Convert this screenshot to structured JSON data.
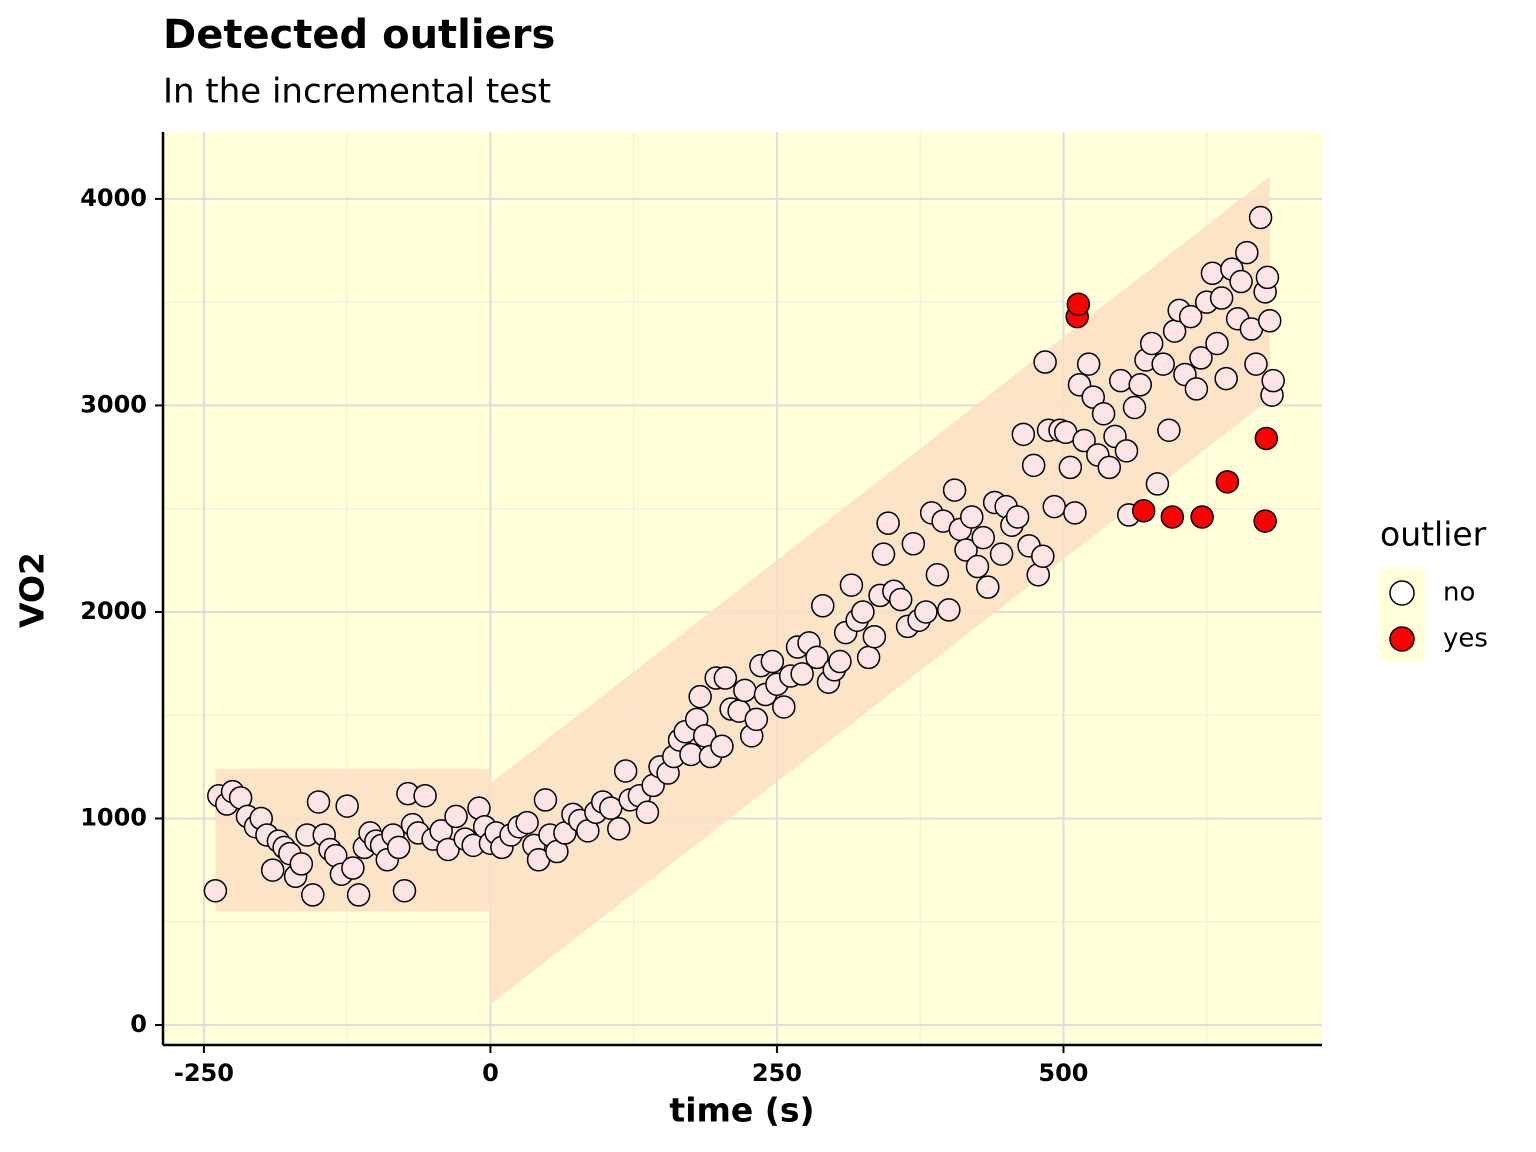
{
  "chart_data": {
    "type": "scatter",
    "title": "Detected outliers",
    "subtitle": "In the incremental test",
    "x_label": "time (s)",
    "y_label": "VO2",
    "xlim": [
      -285.7,
      725.6
    ],
    "ylim": [
      -96.9,
      4324
    ],
    "xticks": [
      -250,
      0,
      250,
      500
    ],
    "yticks": [
      0,
      1000,
      2000,
      3000,
      4000
    ],
    "minor_xticks": [
      -125,
      125,
      375,
      625
    ],
    "minor_yticks": [
      500,
      1500,
      2500,
      3500
    ],
    "grid": true,
    "background": "#ffffd8",
    "band_color": "#fddfc4",
    "band": [
      {
        "x": [
          -240,
          0
        ],
        "lower": [
          550,
          550
        ],
        "upper": [
          1240,
          1240
        ]
      },
      {
        "x": [
          0,
          680
        ],
        "lower": [
          100,
          3030
        ],
        "upper": [
          1170,
          4110
        ]
      }
    ],
    "legend_title": "outlier",
    "legend_position": "right",
    "series": [
      {
        "name": "no",
        "color": "#ffe4e6",
        "x": [
          -240,
          -237,
          -230,
          -225,
          -218,
          -212,
          -205,
          -200,
          -195,
          -190,
          -185,
          -180,
          -175,
          -170,
          -165,
          -160,
          -155,
          -150,
          -145,
          -140,
          -135,
          -130,
          -125,
          -120,
          -115,
          -110,
          -105,
          -100,
          -95,
          -90,
          -85,
          -80,
          -75,
          -72,
          -68,
          -63,
          -57,
          -50,
          -43,
          -37,
          -30,
          -22,
          -15,
          -10,
          -5,
          0,
          5,
          10,
          18,
          25,
          32,
          38,
          42,
          48,
          52,
          58,
          65,
          72,
          78,
          85,
          92,
          98,
          105,
          112,
          118,
          122,
          130,
          137,
          142,
          148,
          155,
          160,
          165,
          170,
          175,
          180,
          183,
          187,
          192,
          197,
          202,
          205,
          210,
          217,
          222,
          228,
          232,
          236,
          240,
          246,
          250,
          256,
          262,
          268,
          272,
          278,
          285,
          290,
          295,
          300,
          305,
          310,
          315,
          320,
          325,
          330,
          335,
          340,
          343,
          347,
          352,
          358,
          364,
          369,
          374,
          380,
          385,
          390,
          395,
          400,
          405,
          410,
          415,
          420,
          425,
          430,
          434,
          440,
          446,
          450,
          455,
          460,
          465,
          470,
          474,
          478,
          482,
          484,
          487,
          492,
          497,
          502,
          506,
          510,
          514,
          518,
          522,
          526,
          530,
          535,
          540,
          545,
          550,
          555,
          557,
          562,
          567,
          572,
          577,
          582,
          587,
          592,
          597,
          601,
          606,
          611,
          616,
          620,
          625,
          630,
          634,
          638,
          642,
          647,
          652,
          655,
          660,
          664,
          668,
          672,
          676,
          678,
          680,
          682,
          683
        ],
        "values": [
          650,
          1110,
          1070,
          1130,
          1100,
          1010,
          960,
          1000,
          920,
          750,
          890,
          860,
          830,
          720,
          780,
          920,
          630,
          1080,
          920,
          850,
          820,
          730,
          1060,
          760,
          630,
          860,
          930,
          890,
          870,
          800,
          920,
          860,
          650,
          1120,
          970,
          930,
          1110,
          900,
          940,
          850,
          1010,
          900,
          870,
          1050,
          960,
          880,
          930,
          860,
          920,
          960,
          980,
          870,
          800,
          1090,
          920,
          840,
          930,
          1020,
          990,
          940,
          1030,
          1080,
          1050,
          950,
          1230,
          1090,
          1110,
          1030,
          1160,
          1250,
          1220,
          1300,
          1380,
          1420,
          1310,
          1480,
          1590,
          1400,
          1300,
          1680,
          1350,
          1680,
          1530,
          1520,
          1620,
          1400,
          1480,
          1740,
          1600,
          1760,
          1650,
          1540,
          1690,
          1830,
          1700,
          1850,
          1780,
          2030,
          1660,
          1720,
          1760,
          1900,
          2130,
          1960,
          2000,
          1780,
          1880,
          2080,
          2280,
          2430,
          2100,
          2060,
          1930,
          2330,
          1960,
          2000,
          2480,
          2180,
          2440,
          2010,
          2590,
          2400,
          2300,
          2460,
          2220,
          2360,
          2120,
          2530,
          2280,
          2510,
          2420,
          2460,
          2860,
          2320,
          2710,
          2180,
          2270,
          3210,
          2880,
          2510,
          2880,
          2870,
          2700,
          2480,
          3100,
          2830,
          3200,
          3040,
          2760,
          2960,
          2700,
          2850,
          3120,
          2780,
          2470,
          2990,
          3100,
          3220,
          3300,
          2620,
          3200,
          2880,
          3360,
          3460,
          3150,
          3430,
          3080,
          3230,
          3500,
          3640,
          3300,
          3520,
          3130,
          3660,
          3420,
          3600,
          3740,
          3370,
          3200,
          3910,
          3550,
          3620,
          3410,
          3050,
          3120
        ]
      },
      {
        "name": "yes",
        "color": "#ff0000",
        "x": [
          512,
          513,
          570,
          595,
          621,
          643,
          676,
          677
        ],
        "values": [
          3430,
          3490,
          2490,
          2460,
          2460,
          2630,
          2440,
          2840
        ]
      }
    ]
  }
}
